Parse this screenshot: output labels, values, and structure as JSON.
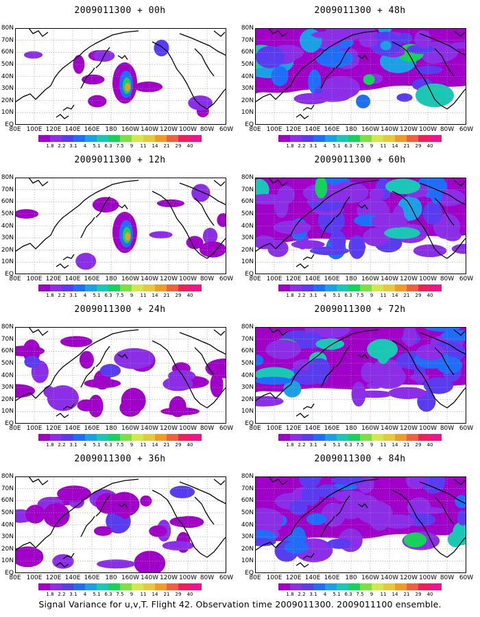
{
  "footer_caption": "Signal Variance for u,v,T. Flight 42. Observation time 2009011300. 2009011100 ensemble.",
  "colorbar": {
    "labels": [
      "1.8",
      "2.2",
      "3.1",
      "4",
      "5.1",
      "6.3",
      "7.5",
      "9",
      "11",
      "14",
      "21",
      "29",
      "40"
    ],
    "colors": [
      "#a000c8",
      "#8c2ee8",
      "#5a3cf0",
      "#1e6efa",
      "#1aa0e6",
      "#19c8b4",
      "#14d25a",
      "#7ee040",
      "#d2e84a",
      "#e6c83c",
      "#f09a28",
      "#f0603c",
      "#f01e5a",
      "#f0148c"
    ]
  },
  "axes": {
    "lat_labels": [
      "80N",
      "70N",
      "60N",
      "50N",
      "40N",
      "30N",
      "20N",
      "10N",
      "EQ"
    ],
    "lon_labels": [
      "80E",
      "100E",
      "120E",
      "140E",
      "160E",
      "180",
      "160W",
      "140W",
      "120W",
      "100W",
      "80W",
      "60W"
    ]
  },
  "panels": [
    {
      "title": "2009011300 + 00h",
      "lead": "00h",
      "coverage": "local"
    },
    {
      "title": "2009011300 + 48h",
      "lead": "48h",
      "coverage": "broad"
    },
    {
      "title": "2009011300 + 12h",
      "lead": "12h",
      "coverage": "local"
    },
    {
      "title": "2009011300 + 60h",
      "lead": "60h",
      "coverage": "broad"
    },
    {
      "title": "2009011300 + 24h",
      "lead": "24h",
      "coverage": "moderate"
    },
    {
      "title": "2009011300 + 72h",
      "lead": "72h",
      "coverage": "broad"
    },
    {
      "title": "2009011300 + 36h",
      "lead": "36h",
      "coverage": "moderate"
    },
    {
      "title": "2009011300 + 84h",
      "lead": "84h",
      "coverage": "broad"
    }
  ]
}
